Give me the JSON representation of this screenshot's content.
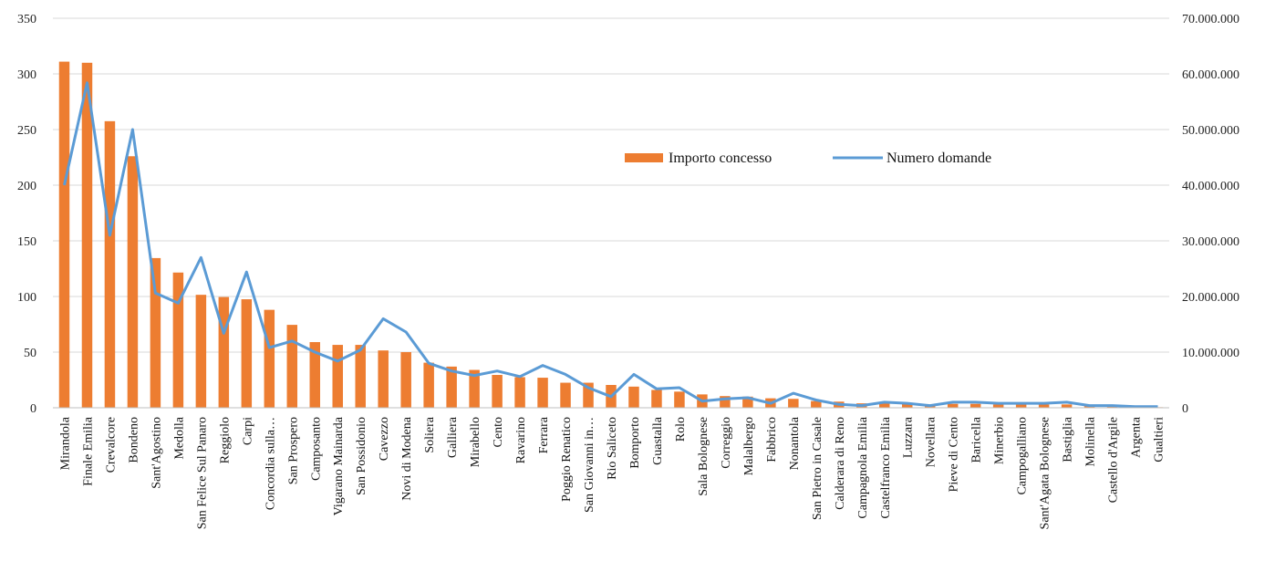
{
  "chart_data": {
    "type": "bar",
    "categories": [
      "Mirandola",
      "Finale Emilia",
      "Crevalcore",
      "Bondeno",
      "Sant'Agostino",
      "Medolla",
      "San Felice Sul Panaro",
      "Reggiolo",
      "Carpi",
      "Concordia sulla…",
      "San Prospero",
      "Camposanto",
      "Vigarano Mainarda",
      "San Possidonio",
      "Cavezzo",
      "Novi di Modena",
      "Soliera",
      "Galliera",
      "Mirabello",
      "Cento",
      "Ravarino",
      "Ferrara",
      "Poggio Renatico",
      "San Giovanni in…",
      "Rio Saliceto",
      "Bomporto",
      "Guastalla",
      "Rolo",
      "Sala Bolognese",
      "Correggio",
      "Malalbergo",
      "Fabbrico",
      "Nonantola",
      "San Pietro in Casale",
      "Calderara di Reno",
      "Campagnola Emilia",
      "Castelfranco Emilia",
      "Luzzara",
      "Novellara",
      "Pieve di Cento",
      "Baricella",
      "Minerbio",
      "Campogalliano",
      "Sant'Agata Bolognese",
      "Bastiglia",
      "Molinella",
      "Castello d'Argile",
      "Argenta",
      "Gualtieri"
    ],
    "series": [
      {
        "name": "Importo concesso",
        "axis": "right",
        "color": "#ed7d31",
        "values": [
          62200000,
          62000000,
          51500000,
          45200000,
          26900000,
          24300000,
          20300000,
          19900000,
          19500000,
          17600000,
          14900000,
          11800000,
          11300000,
          11300000,
          10300000,
          10000000,
          8100000,
          7400000,
          6800000,
          5900000,
          5500000,
          5400000,
          4500000,
          4500000,
          4100000,
          3800000,
          3200000,
          2900000,
          2400000,
          2100000,
          2000000,
          1700000,
          1600000,
          1200000,
          1100000,
          800000,
          800000,
          700000,
          500000,
          700000,
          700000,
          600000,
          600000,
          600000,
          600000,
          400000,
          300000,
          200000,
          100000
        ]
      },
      {
        "name": "Numero domande",
        "axis": "left",
        "color": "#5b9bd5",
        "values": [
          200,
          292,
          155,
          250,
          103,
          94,
          135,
          67,
          122,
          54,
          60,
          50,
          42,
          52,
          80,
          68,
          40,
          33,
          29,
          33,
          28,
          38,
          30,
          18,
          10,
          30,
          17,
          18,
          6,
          8,
          9,
          4,
          13,
          7,
          3,
          2,
          5,
          4,
          2,
          5,
          5,
          4,
          4,
          4,
          5,
          2,
          2,
          1,
          1
        ]
      }
    ],
    "y_left": {
      "range": [
        0,
        350
      ],
      "ticks": [
        "0",
        "50",
        "100",
        "150",
        "200",
        "250",
        "300",
        "350"
      ]
    },
    "y_right": {
      "range": [
        0,
        70000000
      ],
      "ticks": [
        "0",
        "10.000.000",
        "20.000.000",
        "30.000.000",
        "40.000.000",
        "50.000.000",
        "60.000.000",
        "70.000.000"
      ]
    },
    "grid": true,
    "legend": "upper-right-inside",
    "title": "",
    "xlabel": "",
    "ylabel": ""
  }
}
